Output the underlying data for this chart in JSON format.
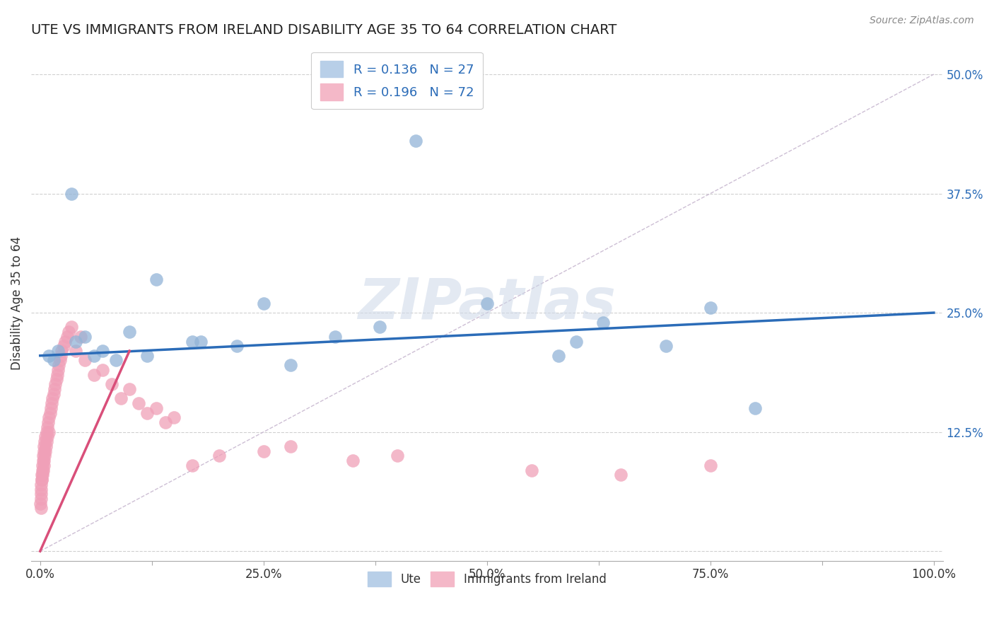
{
  "title": "UTE VS IMMIGRANTS FROM IRELAND DISABILITY AGE 35 TO 64 CORRELATION CHART",
  "source": "Source: ZipAtlas.com",
  "ylabel": "Disability Age 35 to 64",
  "xlim": [
    0,
    100
  ],
  "ylim": [
    0,
    52
  ],
  "xticks": [
    0,
    12.5,
    25,
    37.5,
    50,
    62.5,
    75,
    87.5,
    100
  ],
  "xtick_labels": [
    "0.0%",
    "",
    "25.0%",
    "",
    "50.0%",
    "",
    "75.0%",
    "",
    "100.0%"
  ],
  "yticks": [
    0,
    12.5,
    25,
    37.5,
    50
  ],
  "ytick_labels": [
    "",
    "12.5%",
    "25.0%",
    "37.5%",
    "50.0%"
  ],
  "legend_r1": "R = 0.136",
  "legend_n1": "N = 27",
  "legend_r2": "R = 0.196",
  "legend_n2": "N = 72",
  "blue_scatter_color": "#92b4d7",
  "pink_scatter_color": "#f0a0b8",
  "blue_line_color": "#2b6cb8",
  "pink_line_color": "#d94f7a",
  "ref_line_color": "#c8b8d0",
  "background_color": "#ffffff",
  "grid_color": "#d0d0d0",
  "watermark_color": "#cdd8e8",
  "title_color": "#222222",
  "ytick_color": "#2b6cb8",
  "xtick_color": "#333333",
  "source_color": "#888888",
  "ute_x": [
    1.5,
    2.0,
    3.5,
    5.0,
    7.0,
    8.5,
    10.0,
    13.0,
    17.0,
    22.0,
    25.0,
    33.0,
    42.0,
    50.0,
    60.0,
    63.0,
    70.0,
    80.0,
    1.0,
    4.0,
    6.0,
    12.0,
    18.0,
    28.0,
    38.0,
    58.0,
    75.0
  ],
  "ute_y": [
    20.0,
    21.0,
    37.5,
    22.5,
    21.0,
    20.0,
    23.0,
    28.5,
    22.0,
    21.5,
    26.0,
    22.5,
    43.0,
    26.0,
    22.0,
    24.0,
    21.5,
    15.0,
    20.5,
    22.0,
    20.5,
    20.5,
    22.0,
    19.5,
    23.5,
    20.5,
    25.5
  ],
  "ireland_x": [
    0.05,
    0.08,
    0.1,
    0.12,
    0.15,
    0.18,
    0.2,
    0.22,
    0.25,
    0.28,
    0.3,
    0.33,
    0.35,
    0.38,
    0.4,
    0.43,
    0.45,
    0.48,
    0.5,
    0.55,
    0.6,
    0.65,
    0.7,
    0.75,
    0.8,
    0.85,
    0.9,
    0.95,
    1.0,
    1.1,
    1.2,
    1.3,
    1.4,
    1.5,
    1.6,
    1.7,
    1.8,
    1.9,
    2.0,
    2.1,
    2.2,
    2.3,
    2.4,
    2.6,
    2.8,
    3.0,
    3.2,
    3.5,
    4.0,
    4.5,
    5.0,
    6.0,
    7.0,
    8.0,
    9.0,
    10.0,
    11.0,
    12.0,
    13.0,
    14.0,
    15.0,
    17.0,
    20.0,
    25.0,
    28.0,
    35.0,
    40.0,
    55.0,
    65.0,
    75.0,
    0.06,
    0.09
  ],
  "ireland_y": [
    5.0,
    6.0,
    7.0,
    6.5,
    7.5,
    8.0,
    7.5,
    8.5,
    9.0,
    8.0,
    9.5,
    8.5,
    10.0,
    9.0,
    10.5,
    9.5,
    11.0,
    10.0,
    11.5,
    10.5,
    12.0,
    11.0,
    12.5,
    11.5,
    13.0,
    12.0,
    13.5,
    12.5,
    14.0,
    14.5,
    15.0,
    15.5,
    16.0,
    16.5,
    17.0,
    17.5,
    18.0,
    18.5,
    19.0,
    19.5,
    20.0,
    20.5,
    21.0,
    21.5,
    22.0,
    22.5,
    23.0,
    23.5,
    21.0,
    22.5,
    20.0,
    18.5,
    19.0,
    17.5,
    16.0,
    17.0,
    15.5,
    14.5,
    15.0,
    13.5,
    14.0,
    9.0,
    10.0,
    10.5,
    11.0,
    9.5,
    10.0,
    8.5,
    8.0,
    9.0,
    4.5,
    5.5
  ],
  "blue_trend_x0": 0,
  "blue_trend_y0": 20.5,
  "blue_trend_x1": 100,
  "blue_trend_y1": 25.0,
  "pink_trend_x0": 0,
  "pink_trend_y0": 0,
  "pink_trend_x1": 10,
  "pink_trend_y1": 21.0
}
